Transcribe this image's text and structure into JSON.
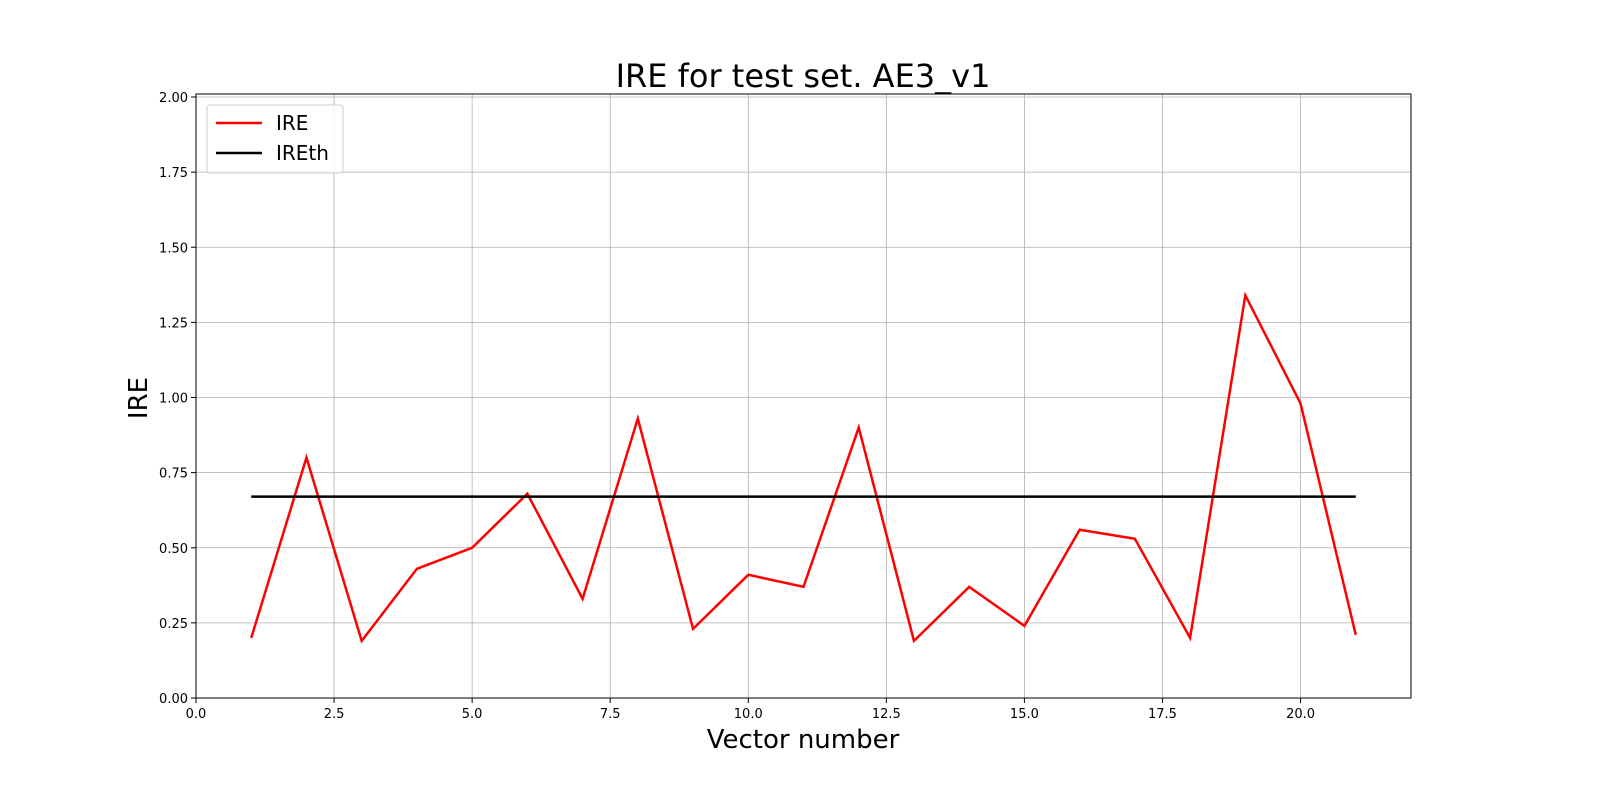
{
  "chart_data": {
    "type": "line",
    "title": "IRE for test set. AE3_v1",
    "xlabel": "Vector number",
    "ylabel": "IRE",
    "xlim": [
      0,
      22
    ],
    "ylim": [
      0,
      2.01
    ],
    "xticks": [
      "0.0",
      "2.5",
      "5.0",
      "7.5",
      "10.0",
      "12.5",
      "15.0",
      "17.5",
      "20.0"
    ],
    "xtick_values": [
      0,
      2.5,
      5,
      7.5,
      10,
      12.5,
      15,
      17.5,
      20
    ],
    "yticks": [
      "0.00",
      "0.25",
      "0.50",
      "0.75",
      "1.00",
      "1.25",
      "1.50",
      "1.75",
      "2.00"
    ],
    "ytick_values": [
      0,
      0.25,
      0.5,
      0.75,
      1,
      1.25,
      1.5,
      1.75,
      2
    ],
    "grid": true,
    "legend_placement": "top-left",
    "series": [
      {
        "name": "IRE",
        "color": "#ff0000",
        "x": [
          1,
          2,
          3,
          4,
          5,
          6,
          7,
          8,
          9,
          10,
          11,
          12,
          13,
          14,
          15,
          16,
          17,
          18,
          19,
          20,
          21
        ],
        "y": [
          0.2,
          0.8,
          0.19,
          0.43,
          0.5,
          0.68,
          0.33,
          0.93,
          0.23,
          0.41,
          0.37,
          0.9,
          0.19,
          0.37,
          0.24,
          0.56,
          0.53,
          0.2,
          1.34,
          0.98,
          0.21
        ]
      },
      {
        "name": "IREth",
        "color": "#000000",
        "x": [
          1,
          21
        ],
        "y": [
          0.67,
          0.67
        ]
      }
    ]
  }
}
